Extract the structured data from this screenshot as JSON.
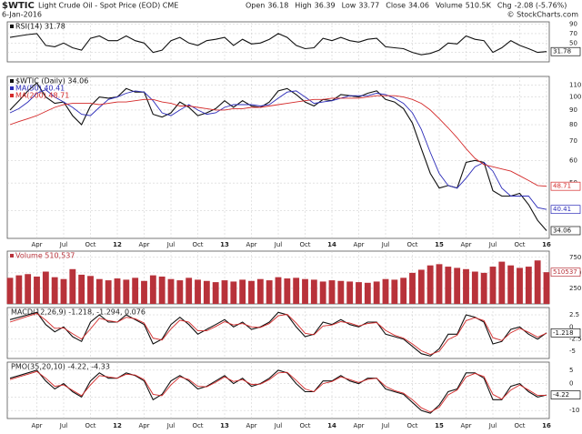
{
  "header": {
    "symbol": "$WTIC",
    "name": "Light Crude Oil - Spot Price (EOD) CME",
    "date": "6-Jan-2016",
    "credit": "© StockCharts.com",
    "stats": [
      {
        "label": "Open",
        "value": "36.18"
      },
      {
        "label": "High",
        "value": "36.39"
      },
      {
        "label": "Low",
        "value": "33.77"
      },
      {
        "label": "Close",
        "value": "34.06"
      },
      {
        "label": "Volume",
        "value": "510.5K"
      },
      {
        "label": "Chg",
        "value": "-2.08 (-5.76%)"
      }
    ]
  },
  "chart_data": [
    {
      "type": "line",
      "ylim": [
        10,
        95
      ],
      "yticks": [
        30,
        50,
        70,
        90
      ],
      "series": [
        {
          "name": "RSI(14) 31.78",
          "color": "#111111",
          "end_label": true,
          "values": [
            62,
            65,
            68,
            70,
            45,
            42,
            50,
            40,
            35,
            60,
            65,
            55,
            55,
            65,
            55,
            50,
            30,
            35,
            55,
            62,
            50,
            45,
            55,
            58,
            62,
            45,
            58,
            48,
            50,
            58,
            70,
            62,
            45,
            38,
            40,
            60,
            55,
            62,
            55,
            52,
            58,
            60,
            42,
            40,
            38,
            30,
            25,
            28,
            35,
            50,
            48,
            65,
            58,
            55,
            30,
            40,
            55,
            45,
            38,
            30,
            31.78
          ]
        }
      ]
    },
    {
      "type": "line",
      "log": true,
      "ylim": [
        32,
        118
      ],
      "yticks": [
        40,
        50,
        60,
        70,
        80,
        90,
        100,
        110
      ],
      "categories": [
        null,
        null,
        null,
        "Apr",
        null,
        null,
        "Jul",
        null,
        null,
        "Oct",
        null,
        null,
        "12",
        null,
        null,
        "Apr",
        null,
        null,
        "Jul",
        null,
        null,
        "Oct",
        null,
        null,
        "13",
        null,
        null,
        "Apr",
        null,
        null,
        "Jul",
        null,
        null,
        "Oct",
        null,
        null,
        "14",
        null,
        null,
        "Apr",
        null,
        null,
        "Jul",
        null,
        null,
        "Oct",
        null,
        null,
        "15",
        null,
        null,
        "Apr",
        null,
        null,
        "Jul",
        null,
        null,
        "Oct",
        null,
        null,
        "16"
      ],
      "series": [
        {
          "name": "$WTIC (Daily) 34.06",
          "color": "#111111",
          "end_label": true,
          "values": [
            90,
            97,
            105,
            112,
            100,
            95,
            96,
            86,
            80,
            93,
            100,
            99,
            100,
            107,
            104,
            104,
            87,
            85,
            88,
            96,
            92,
            86,
            88,
            91,
            97,
            92,
            97,
            93,
            92,
            96,
            105,
            107,
            102,
            96,
            93,
            98,
            97,
            102,
            101,
            100,
            103,
            105,
            98,
            96,
            91,
            81,
            66,
            54,
            48,
            49,
            48,
            59,
            60,
            59,
            47,
            45,
            45,
            46,
            42,
            37,
            34.06
          ]
        },
        {
          "name": "MA(50) 40.41",
          "color": "#2b2bb8",
          "end_label": true,
          "values": [
            88,
            91,
            96,
            103,
            106,
            100,
            96,
            92,
            87,
            86,
            92,
            98,
            100,
            103,
            105,
            104,
            97,
            88,
            86,
            90,
            94,
            90,
            87,
            88,
            92,
            94,
            94,
            94,
            93,
            94,
            99,
            104,
            105,
            100,
            95,
            96,
            97,
            99,
            101,
            101,
            101,
            103,
            102,
            99,
            95,
            88,
            77,
            64,
            54,
            49,
            48,
            52,
            57,
            59,
            55,
            48,
            45,
            45,
            45,
            41,
            40.41
          ]
        },
        {
          "name": "MA(200) 48.71",
          "color": "#d42a2a",
          "end_label": true,
          "values": [
            80,
            82,
            84,
            86,
            89,
            92,
            94,
            95,
            95,
            95,
            94,
            95,
            96,
            96,
            97,
            98,
            98,
            96,
            95,
            93,
            93,
            92,
            91,
            90,
            90,
            91,
            91,
            92,
            92,
            93,
            94,
            95,
            96,
            97,
            98,
            98,
            99,
            99,
            99,
            99,
            100,
            101,
            101,
            101,
            100,
            98,
            95,
            90,
            84,
            78,
            72,
            66,
            61,
            58,
            57,
            56,
            55,
            53,
            51,
            49,
            48.71
          ]
        }
      ]
    },
    {
      "type": "bar",
      "ylim": [
        0,
        850000
      ],
      "yticks": [
        {
          "value": 250000,
          "label": "250K"
        },
        {
          "value": 500000,
          "label": "500K"
        },
        {
          "value": 750000,
          "label": "750K"
        }
      ],
      "series": [
        {
          "name": "Volume 510,537",
          "color": "#b8323a",
          "end_label": true,
          "values": [
            420000,
            460000,
            480000,
            440000,
            520000,
            430000,
            400000,
            560000,
            470000,
            450000,
            400000,
            380000,
            410000,
            390000,
            420000,
            370000,
            460000,
            440000,
            400000,
            380000,
            420000,
            390000,
            370000,
            350000,
            380000,
            360000,
            390000,
            370000,
            400000,
            380000,
            430000,
            410000,
            420000,
            400000,
            390000,
            360000,
            380000,
            370000,
            360000,
            350000,
            340000,
            360000,
            400000,
            390000,
            420000,
            500000,
            550000,
            620000,
            640000,
            600000,
            580000,
            560000,
            520000,
            500000,
            600000,
            680000,
            620000,
            580000,
            600000,
            700000,
            510537
          ]
        }
      ]
    },
    {
      "type": "line",
      "title": "MACD(12,26,9) -1.218, -1.294, 0.076",
      "ylim": [
        -6.5,
        4
      ],
      "yticks": [
        -5,
        -2.5,
        0,
        2.5
      ],
      "series": [
        {
          "color": "#111111",
          "end_label": true,
          "values": [
            1.5,
            2.0,
            2.5,
            3.0,
            0.5,
            -1.0,
            0,
            -2.0,
            -3.0,
            1.0,
            2.5,
            1.0,
            1.0,
            2.5,
            1.5,
            0.5,
            -3.5,
            -2.5,
            0.5,
            2.0,
            0.5,
            -1.5,
            -0.5,
            0.5,
            1.5,
            0,
            1.0,
            -0.5,
            0,
            1.0,
            3.0,
            2.5,
            0,
            -2.0,
            -1.5,
            1.0,
            0.5,
            1.5,
            0.5,
            0,
            1.0,
            1.0,
            -1.5,
            -2.0,
            -2.5,
            -4.0,
            -5.5,
            -6.0,
            -4.5,
            -1.5,
            -1.5,
            2.5,
            2.0,
            1.0,
            -3.5,
            -3.0,
            -0.5,
            0,
            -1.5,
            -2.5,
            -1.218
          ]
        },
        {
          "color": "#d42a2a",
          "values": [
            1.0,
            1.6,
            2.2,
            2.8,
            1.4,
            -0.3,
            -0.2,
            -1.4,
            -2.5,
            -0.4,
            1.8,
            1.3,
            1.0,
            2.0,
            1.7,
            0.8,
            -2.3,
            -2.7,
            -0.4,
            1.4,
            1.0,
            -0.8,
            -0.8,
            0.1,
            1.1,
            0.4,
            0.7,
            0.0,
            -0.1,
            0.7,
            2.3,
            2.6,
            0.8,
            -1.3,
            -1.6,
            0.2,
            0.4,
            1.1,
            0.8,
            0.2,
            0.7,
            0.9,
            -0.7,
            -1.7,
            -2.3,
            -3.5,
            -4.9,
            -5.7,
            -5.0,
            -2.6,
            -1.7,
            1.3,
            1.9,
            1.3,
            -2.2,
            -2.8,
            -1.2,
            -0.3,
            -1.1,
            -2.1,
            -1.294
          ]
        }
      ]
    },
    {
      "type": "line",
      "title": "PMO(35,20,10) -4.22, -4.33",
      "ylim": [
        -13,
        8
      ],
      "yticks": [
        -10,
        -5,
        0,
        5
      ],
      "categories": [
        null,
        null,
        null,
        "Apr",
        null,
        null,
        "Jul",
        null,
        null,
        "Oct",
        null,
        null,
        "12",
        null,
        null,
        "Apr",
        null,
        null,
        "Jul",
        null,
        null,
        "Oct",
        null,
        null,
        "13",
        null,
        null,
        "Apr",
        null,
        null,
        "Jul",
        null,
        null,
        "Oct",
        null,
        null,
        "14",
        null,
        null,
        "Apr",
        null,
        null,
        "Jul",
        null,
        null,
        "Oct",
        null,
        null,
        "15",
        null,
        null,
        "Apr",
        null,
        null,
        "Jul",
        null,
        null,
        "Oct",
        null,
        null,
        "16"
      ],
      "series": [
        {
          "color": "#111111",
          "end_label": true,
          "values": [
            2,
            3,
            4,
            5,
            1,
            -2,
            0,
            -3,
            -5,
            1,
            4,
            2,
            2,
            4,
            3,
            1,
            -6,
            -4,
            1,
            3,
            1,
            -2,
            -1,
            1,
            3,
            0,
            2,
            -1,
            0,
            2,
            5,
            4,
            0,
            -3,
            -3,
            1,
            1,
            3,
            1,
            0,
            2,
            2,
            -2,
            -3,
            -4,
            -7,
            -10,
            -11,
            -8,
            -3,
            -2,
            4,
            4,
            2,
            -6,
            -6,
            -1,
            0,
            -3,
            -5,
            -4.22
          ]
        },
        {
          "color": "#d42a2a",
          "values": [
            1.5,
            2.5,
            3.5,
            4.5,
            2,
            -1,
            -0.5,
            -2.5,
            -4.5,
            -0.5,
            3,
            2.5,
            2,
            3.5,
            3.2,
            1.5,
            -4,
            -4.5,
            -0.5,
            2.5,
            1.5,
            -1,
            -1.2,
            0.5,
            2.5,
            0.8,
            1.5,
            -0.3,
            -0.2,
            1.5,
            4,
            4.2,
            1.2,
            -2,
            -3,
            0,
            0.8,
            2.5,
            1.5,
            0.4,
            1.6,
            2,
            -1,
            -2.6,
            -3.6,
            -6,
            -9,
            -10.6,
            -8.8,
            -4.2,
            -2.4,
            2.5,
            3.8,
            2.6,
            -4,
            -5.8,
            -2.4,
            -0.5,
            -2.4,
            -4.4,
            -4.33
          ]
        }
      ]
    }
  ]
}
